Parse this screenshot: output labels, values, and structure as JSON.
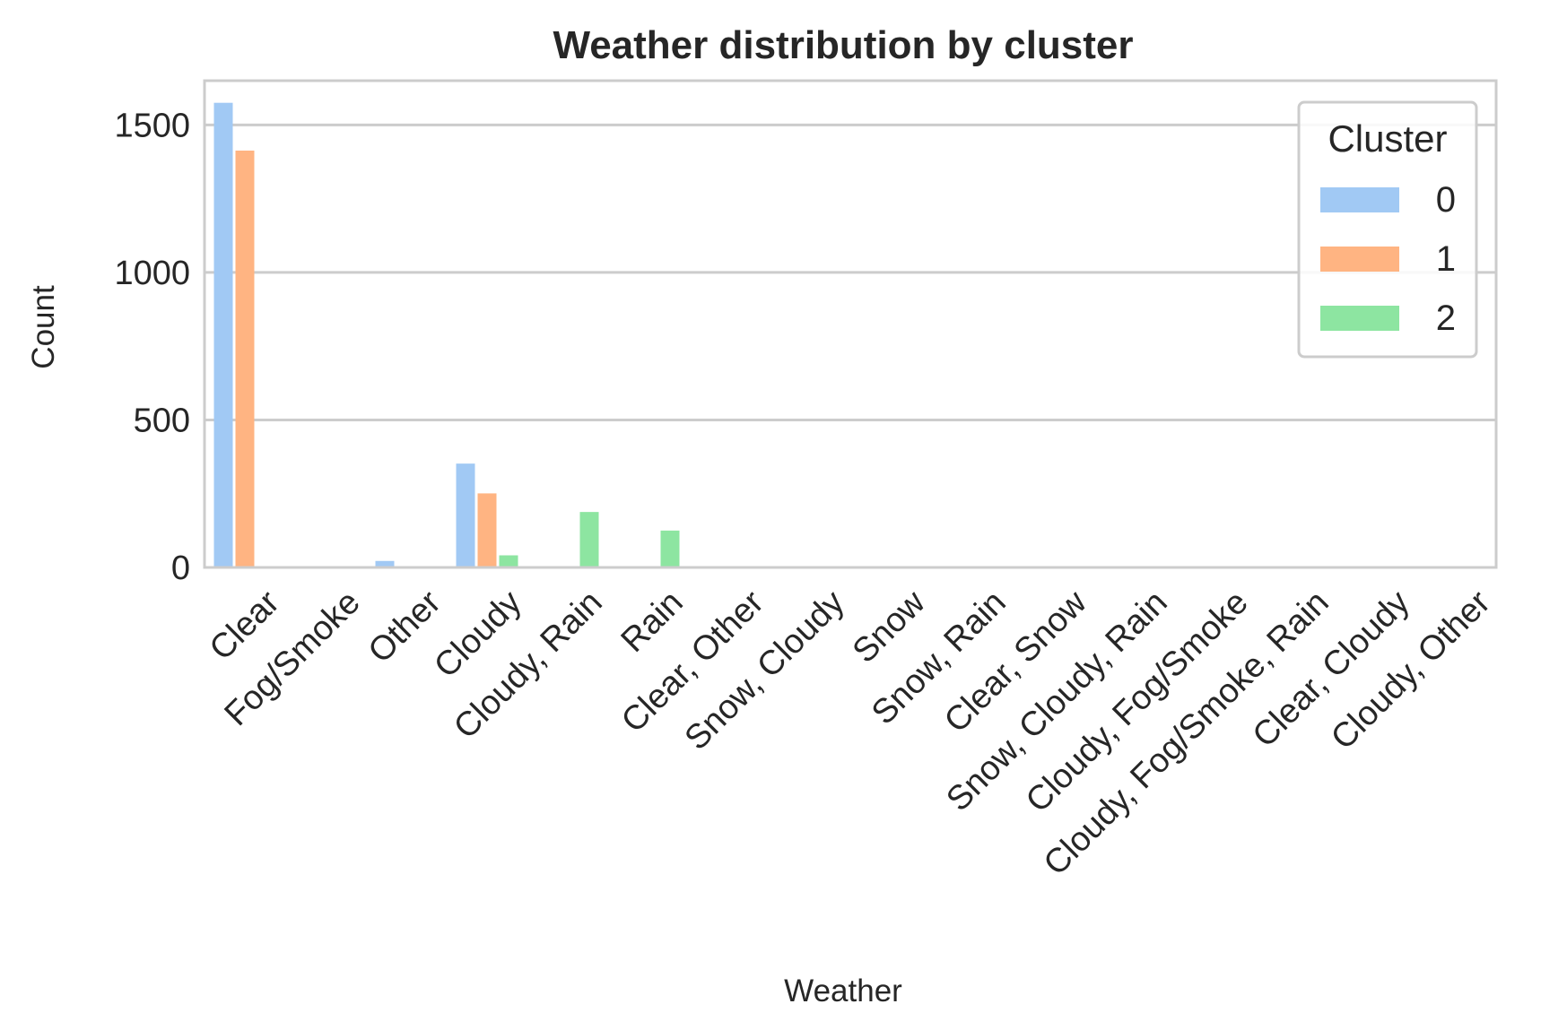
{
  "chart_data": {
    "type": "bar",
    "title": "Weather distribution by cluster",
    "xlabel": "Weather",
    "ylabel": "Count",
    "ylim": [
      0,
      1650
    ],
    "yticks": [
      0,
      500,
      1000,
      1500
    ],
    "grid": "horizontal",
    "legend_position": "top-right",
    "legend_title": "Cluster",
    "categories": [
      "Clear",
      "Fog/Smoke",
      "Other",
      "Cloudy",
      "Cloudy, Rain",
      "Rain",
      "Clear, Other",
      "Snow, Cloudy",
      "Snow",
      "Snow, Rain",
      "Clear, Snow",
      "Snow, Cloudy, Rain",
      "Cloudy, Fog/Smoke",
      "Cloudy, Fog/Smoke, Rain",
      "Clear, Cloudy",
      "Cloudy, Other"
    ],
    "series": [
      {
        "name": "0",
        "color": "#a1c9f4",
        "values": [
          1575,
          2,
          22,
          352,
          3,
          3,
          2,
          2,
          1,
          1,
          1,
          1,
          1,
          1,
          1,
          1
        ]
      },
      {
        "name": "1",
        "color": "#ffb482",
        "values": [
          1413,
          1,
          3,
          251,
          3,
          3,
          1,
          1,
          1,
          1,
          1,
          1,
          1,
          1,
          1,
          1
        ]
      },
      {
        "name": "2",
        "color": "#8de5a1",
        "values": [
          0,
          0,
          0,
          41,
          188,
          125,
          0,
          0,
          0,
          0,
          0,
          0,
          0,
          0,
          0,
          0
        ]
      }
    ]
  }
}
